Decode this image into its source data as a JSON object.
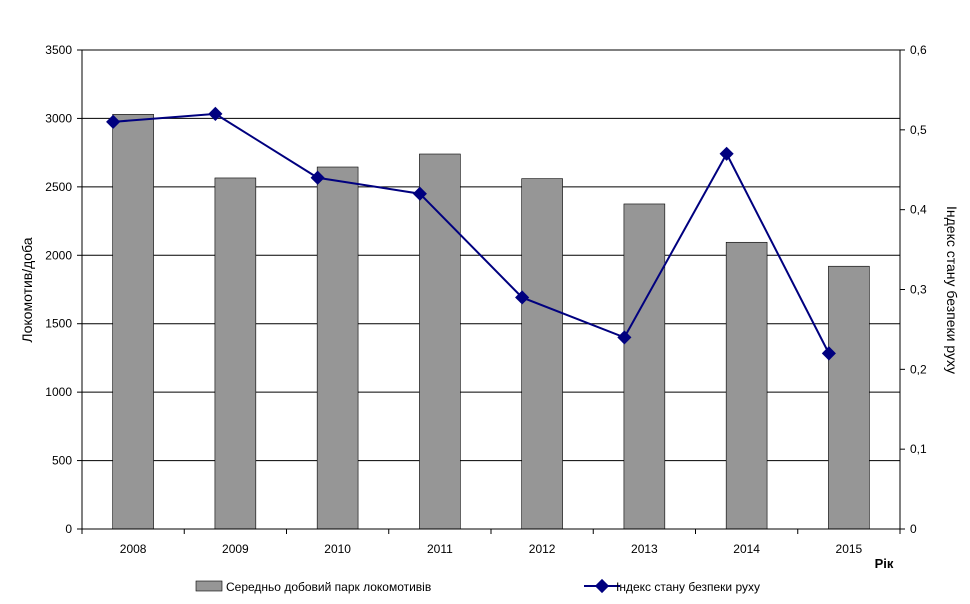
{
  "chart_data": {
    "type": "bar+line",
    "categories": [
      "2008",
      "2009",
      "2010",
      "2011",
      "2012",
      "2013",
      "2014",
      "2015"
    ],
    "series": [
      {
        "name": "Середньо добовий парк локомотивів",
        "type": "bar",
        "axis": "left",
        "values": [
          3030,
          2565,
          2645,
          2740,
          2560,
          2375,
          2095,
          1920
        ]
      },
      {
        "name": "Індекс стану безпеки руху",
        "type": "line",
        "axis": "right",
        "values": [
          0.51,
          0.52,
          0.44,
          0.42,
          0.29,
          0.24,
          0.47,
          0.22
        ]
      }
    ],
    "xlabel": "Рік",
    "ylabel": "Локомотив/доба",
    "y2label": "Індекс стану безпеки руху",
    "ylim": [
      0,
      3500
    ],
    "y2lim": [
      0,
      0.6
    ],
    "yticks": [
      "0",
      "500",
      "1000",
      "1500",
      "2000",
      "2500",
      "3000",
      "3500"
    ],
    "y2ticks": [
      "0",
      "0,1",
      "0,2",
      "0,3",
      "0,4",
      "0,5",
      "0,6"
    ],
    "grid": true,
    "legend_position": "bottom",
    "colors": {
      "bar": "#969696",
      "bar_edge": "#000000",
      "line": "#00007f",
      "grid": "#000000"
    }
  }
}
